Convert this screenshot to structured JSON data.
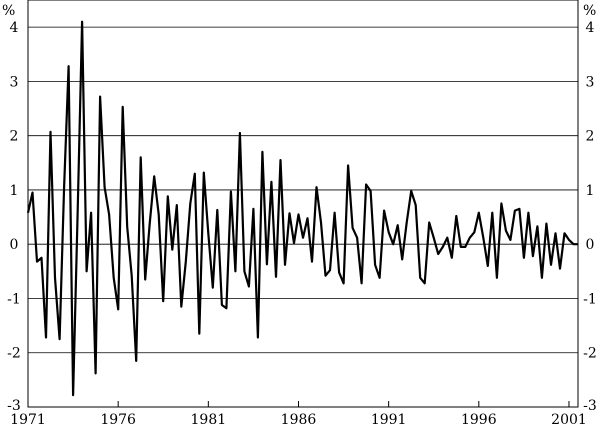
{
  "chart_data": {
    "type": "line",
    "title": "",
    "xlabel": "",
    "ylabel": "%",
    "y_unit_left": "%",
    "y_unit_right": "%",
    "ylim": [
      -3,
      4.5
    ],
    "xlim": [
      1971,
      2001.5
    ],
    "grid": "horizontal",
    "line_color": "#000000",
    "y_ticks": [
      4,
      3,
      2,
      1,
      0,
      -1,
      -2,
      -3
    ],
    "y_tick_labels": [
      "4",
      "3",
      "2",
      "1",
      "0",
      "-1",
      "-2",
      "-3"
    ],
    "x_ticks": [
      1971,
      1976,
      1981,
      1986,
      1991,
      1996,
      2001
    ],
    "x_tick_labels": [
      "1971",
      "1976",
      "1981",
      "1986",
      "1991",
      "1996",
      "2001"
    ],
    "series": [
      {
        "frequency": "quarterly",
        "start": 1971.0,
        "values": [
          0.58,
          0.95,
          -0.32,
          -0.25,
          -1.72,
          2.07,
          -0.62,
          -1.75,
          1.05,
          3.28,
          -2.78,
          0.55,
          4.1,
          -0.5,
          0.58,
          -2.38,
          2.72,
          1.05,
          0.55,
          -0.62,
          -1.2,
          2.53,
          0.32,
          -0.58,
          -2.15,
          1.6,
          -0.65,
          0.38,
          1.25,
          0.55,
          -1.05,
          0.88,
          -0.1,
          0.72,
          -1.15,
          -0.32,
          0.75,
          1.3,
          -1.65,
          1.32,
          0.2,
          -0.8,
          0.63,
          -1.12,
          -1.18,
          0.97,
          -0.5,
          2.05,
          -0.5,
          -0.78,
          0.65,
          -1.72,
          1.7,
          -0.37,
          1.15,
          -0.6,
          1.55,
          -0.38,
          0.57,
          0.02,
          0.55,
          0.12,
          0.48,
          -0.32,
          1.05,
          0.4,
          -0.58,
          -0.48,
          0.58,
          -0.52,
          -0.72,
          1.45,
          0.3,
          0.12,
          -0.72,
          1.1,
          0.98,
          -0.38,
          -0.62,
          0.62,
          0.22,
          0.0,
          0.35,
          -0.28,
          0.4,
          0.98,
          0.72,
          -0.62,
          -0.72,
          0.4,
          0.12,
          -0.18,
          -0.05,
          0.12,
          -0.25,
          0.52,
          -0.05,
          -0.05,
          0.12,
          0.22,
          0.58,
          0.12,
          -0.4,
          0.58,
          -0.62,
          0.75,
          0.25,
          0.08,
          0.62,
          0.65,
          -0.25,
          0.58,
          -0.22,
          0.33,
          -0.62,
          0.38,
          -0.38,
          0.2,
          -0.45,
          0.2,
          0.08,
          0.0,
          0.0
        ]
      }
    ]
  }
}
